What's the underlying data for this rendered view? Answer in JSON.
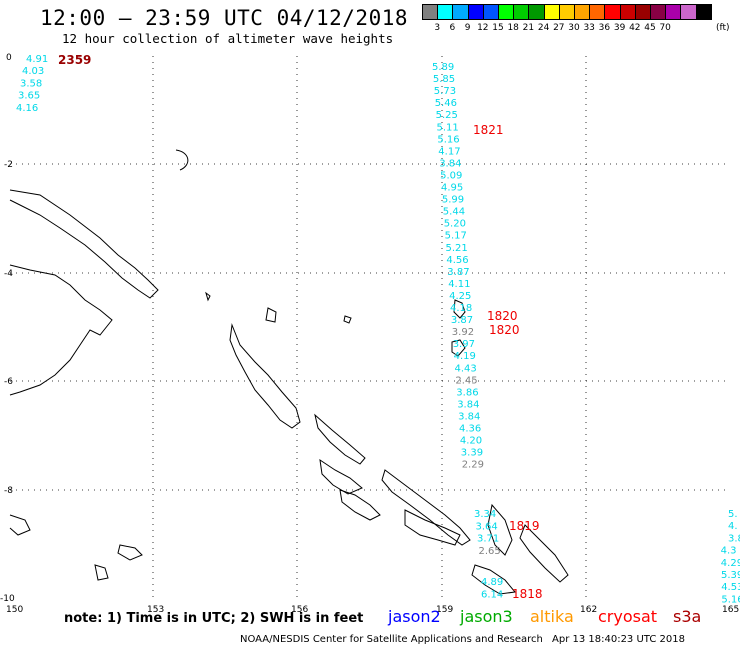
{
  "header": {
    "title": "12:00 – 23:59 UTC 04/12/2018",
    "subtitle": "12 hour collection of altimeter wave heights"
  },
  "colorbar": {
    "unit": "(ft)",
    "colors": [
      "#808080",
      "#00ffff",
      "#00aaff",
      "#0000ff",
      "#0055ff",
      "#00ff00",
      "#00cc00",
      "#009900",
      "#ffff00",
      "#ffcc00",
      "#ffa500",
      "#ff6600",
      "#ff0000",
      "#cc0000",
      "#990000",
      "#880044",
      "#aa00aa",
      "#cc66cc",
      "#000000"
    ],
    "labels": [
      "3",
      "6",
      "9",
      "12",
      "15",
      "18",
      "21",
      "24",
      "27",
      "30",
      "33",
      "36",
      "39",
      "42",
      "45",
      "70"
    ]
  },
  "axes": {
    "x_ticks": [
      "150",
      "153",
      "156",
      "159",
      "162",
      "165"
    ],
    "y_ticks": [
      "0",
      "-2",
      "-4",
      "-6",
      "-8",
      "-10"
    ]
  },
  "tracks": {
    "track1": {
      "values": [
        "4.91",
        "4.03",
        "3.58",
        "3.65",
        "4.16"
      ],
      "time": "2359"
    },
    "track2": {
      "values": [
        "5.89",
        "5.85",
        "5.73",
        "5.46",
        "5.25",
        "5.11",
        "5.16",
        "4.17",
        "3.84",
        "5.09",
        "4.95",
        "5.99",
        "5.44",
        "5.20",
        "5.17",
        "5.21",
        "4.56",
        "3.87",
        "4.11",
        "4.25",
        "4.18",
        "3.87",
        "3.92",
        "3.97",
        "4.19",
        "4.43",
        "2.45",
        "3.86",
        "3.84",
        "3.84",
        "4.36",
        "4.20",
        "3.39",
        "2.29",
        "3.34",
        "3.64",
        "3.71",
        "2.65",
        "4.89",
        "6.14"
      ],
      "times": [
        "1821",
        "1820",
        "1820",
        "1819",
        "1818"
      ]
    },
    "track3": {
      "values": [
        "5.",
        "4.",
        "3.8",
        "4.3",
        "4.29",
        "5.39",
        "4.53",
        "5.16"
      ]
    }
  },
  "footer": {
    "note": "note: 1) Time is in UTC; 2) SWH is in feet",
    "satellites": [
      {
        "name": "jason2",
        "color": "#0000ff"
      },
      {
        "name": "jason3",
        "color": "#00aa00"
      },
      {
        "name": "altika",
        "color": "#ff9900"
      },
      {
        "name": "cryosat",
        "color": "#ff0000"
      },
      {
        "name": "s3a",
        "color": "#aa0000"
      }
    ],
    "credit": "NOAA/NESDIS Center for Satellite Applications and Research",
    "timestamp": "Apr 13 18:40:23 UTC 2018"
  }
}
